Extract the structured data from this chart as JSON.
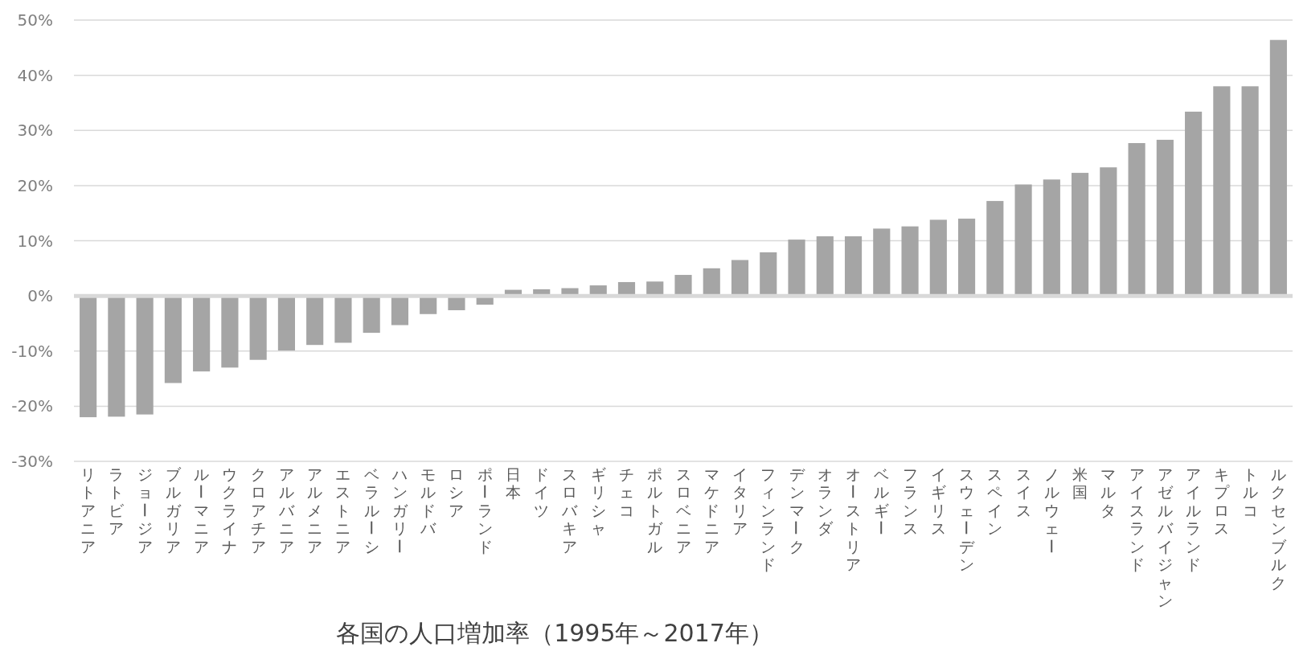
{
  "chart_data": {
    "type": "bar",
    "title": "各国の人口増加率（1995年～2017年）",
    "categories": [
      "リトアニア",
      "ラトビア",
      "ジョージア",
      "ブルガリア",
      "ルーマニア",
      "ウクライナ",
      "クロアチア",
      "アルバニア",
      "アルメニア",
      "エストニア",
      "ベラルーシ",
      "ハンガリー",
      "モルドバ",
      "ロシア",
      "ポーランド",
      "日本",
      "ドイツ",
      "スロバキア",
      "ギリシャ",
      "チェコ",
      "ポルトガル",
      "スロベニア",
      "マケドニア",
      "イタリア",
      "フィンランド",
      "デンマーク",
      "オランダ",
      "オーストリア",
      "ベルギー",
      "フランス",
      "イギリス",
      "スウェーデン",
      "スペイン",
      "スイス",
      "ノルウェー",
      "米国",
      "マルタ",
      "アイスランド",
      "アゼルバイジャン",
      "アイルランド",
      "キプロス",
      "トルコ",
      "ルクセンブルク"
    ],
    "values": [
      -22.0,
      -21.9,
      -21.5,
      -15.8,
      -13.7,
      -13.0,
      -11.6,
      -9.9,
      -8.9,
      -8.5,
      -6.7,
      -5.3,
      -3.3,
      -2.6,
      -1.6,
      1.1,
      1.2,
      1.4,
      1.9,
      2.5,
      2.6,
      3.8,
      5.0,
      6.5,
      7.9,
      10.2,
      10.8,
      10.8,
      12.2,
      12.6,
      13.8,
      14.0,
      17.2,
      20.2,
      21.1,
      22.3,
      23.3,
      27.7,
      28.3,
      33.4,
      38.0,
      38.0,
      46.4
    ],
    "color": "#a5a5a5",
    "ylim": [
      -30,
      50
    ],
    "yticks": [
      {
        "value": -30,
        "label": "-30%"
      },
      {
        "value": -20,
        "label": "-20%"
      },
      {
        "value": -10,
        "label": "-10%"
      },
      {
        "value": 0,
        "label": "0%"
      },
      {
        "value": 10,
        "label": "10%"
      },
      {
        "value": 20,
        "label": "20%"
      },
      {
        "value": 30,
        "label": "30%"
      },
      {
        "value": 40,
        "label": "40%"
      },
      {
        "value": 50,
        "label": "50%"
      }
    ],
    "grid": "y"
  }
}
